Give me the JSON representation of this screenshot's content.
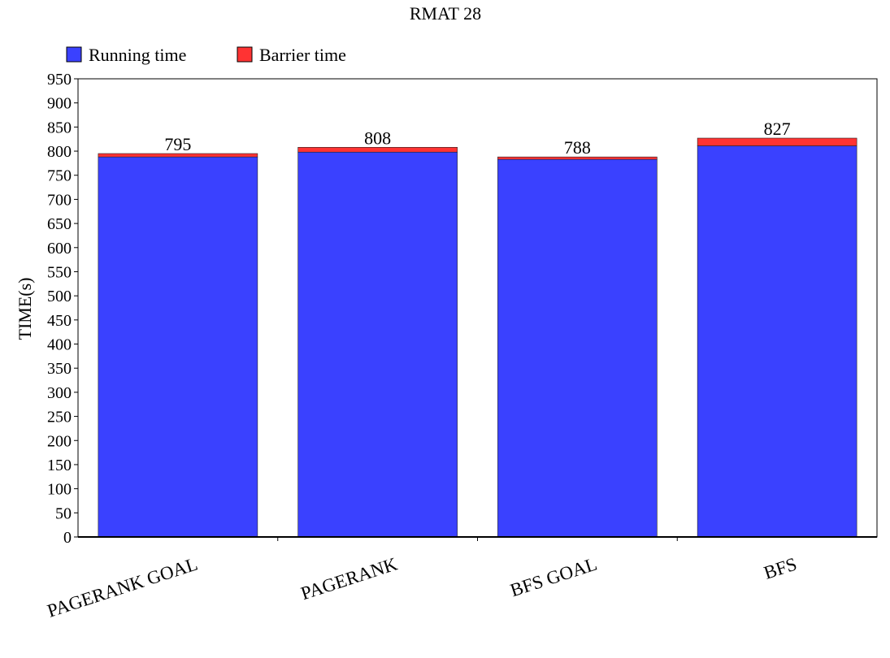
{
  "chart_data": {
    "type": "bar",
    "stacked": true,
    "title": "RMAT 28",
    "xlabel": "",
    "ylabel": "TIME(s)",
    "ylim": [
      0,
      950
    ],
    "ytick_step": 50,
    "grid": false,
    "legend_position": "top-left",
    "categories": [
      "PAGERANK GOAL",
      "PAGERANK",
      "BFS GOAL",
      "BFS"
    ],
    "series": [
      {
        "name": "Running time",
        "color": "#3a41ff",
        "values": [
          788,
          798,
          783,
          811
        ]
      },
      {
        "name": "Barrier time",
        "color": "#ff3333",
        "values": [
          7,
          10,
          5,
          16
        ]
      }
    ],
    "totals": [
      795,
      808,
      788,
      827
    ]
  }
}
